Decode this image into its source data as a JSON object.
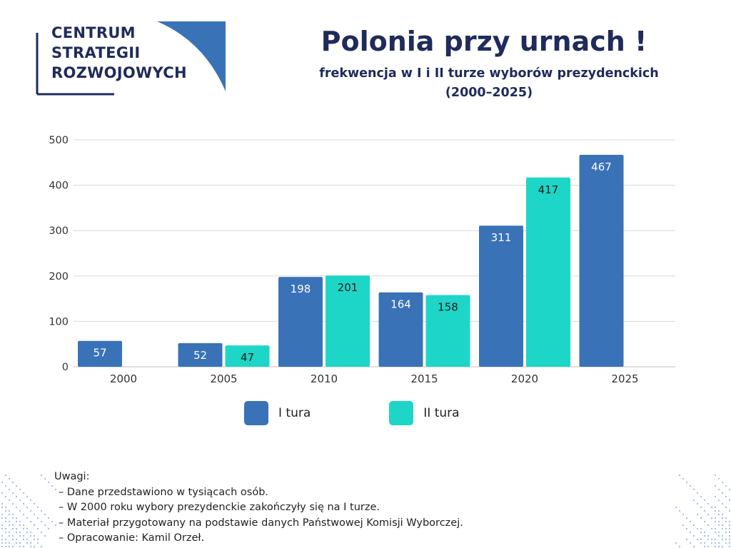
{
  "logo": {
    "lines": [
      "CENTRUM",
      "STRATEGII",
      "ROZWOJOWYCH"
    ]
  },
  "header": {
    "title": "Polonia przy urnach !",
    "subtitle_line1": "frekwencja w I i II turze wyborów prezydenckich",
    "subtitle_line2": "(2000–2025)"
  },
  "colors": {
    "brand": "#1f2b5a",
    "tura1": "#3a72b8",
    "tura2": "#1dd6c8",
    "grid": "#d9d9d9"
  },
  "chart_data": {
    "type": "bar",
    "title": "Polonia przy urnach !",
    "categories": [
      "2000",
      "2005",
      "2010",
      "2015",
      "2020",
      "2025"
    ],
    "series": [
      {
        "name": "I tura",
        "values": [
          57,
          52,
          198,
          164,
          311,
          467
        ]
      },
      {
        "name": "II tura",
        "values": [
          null,
          47,
          201,
          158,
          417,
          null
        ]
      }
    ],
    "yticks": [
      "0",
      "100",
      "200",
      "300",
      "400",
      "500"
    ],
    "ylim": [
      0,
      500
    ],
    "grid": true,
    "legend": "bottom"
  },
  "notes": {
    "title": "Uwagi:",
    "items": [
      "– Dane przedstawiono w tysiącach osób.",
      "– W 2000 roku wybory prezydenckie zakończyły się na I turze.",
      "– Materiał przygotowany na podstawie danych Państwowej Komisji Wyborczej.",
      "– Opracowanie: Kamil Orzeł."
    ]
  }
}
